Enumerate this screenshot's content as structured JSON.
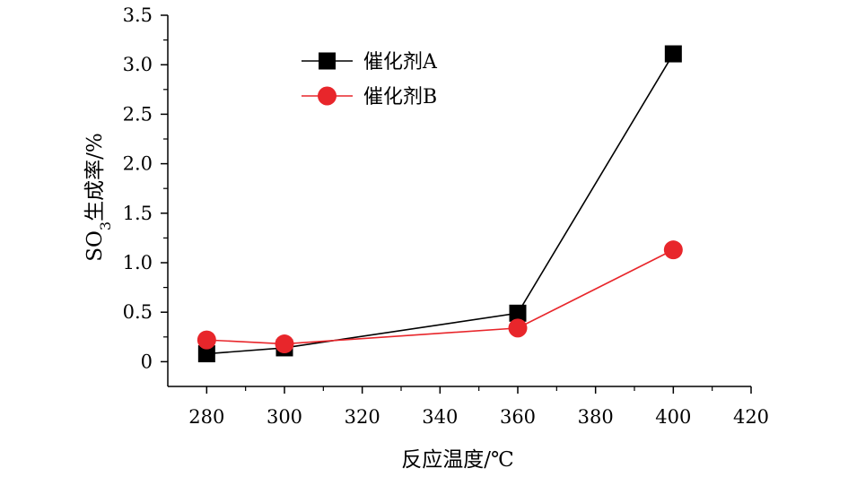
{
  "chart_data": {
    "type": "line",
    "title": "",
    "xlabel": "反应温度/℃",
    "ylabel": {
      "prefix": "SO",
      "subscript": "3",
      "suffix": "生成率/%"
    },
    "xlim": [
      270,
      420
    ],
    "ylim": [
      -0.25,
      3.5
    ],
    "xticks": [
      280,
      300,
      320,
      340,
      360,
      380,
      400,
      420
    ],
    "xtick_labels": [
      "280",
      "300",
      "320",
      "340",
      "360",
      "380",
      "400",
      "420"
    ],
    "yticks": [
      0,
      0.5,
      1.0,
      1.5,
      2.0,
      2.5,
      3.0,
      3.5
    ],
    "ytick_labels": [
      "0",
      "0.5",
      "1.0",
      "1.5",
      "2.0",
      "2.5",
      "3.0",
      "3.5"
    ],
    "grid": false,
    "legend_position": "top-left",
    "series": [
      {
        "name": "催化剂A",
        "marker": "square",
        "color": "#000000",
        "line_color": "#000000",
        "x": [
          280,
          300,
          360,
          400
        ],
        "y": [
          0.08,
          0.14,
          0.49,
          3.11
        ]
      },
      {
        "name": "催化剂B",
        "marker": "circle",
        "color": "#e8262b",
        "line_color": "#e8262b",
        "x": [
          280,
          300,
          360,
          400
        ],
        "y": [
          0.22,
          0.18,
          0.34,
          1.13
        ]
      }
    ]
  }
}
